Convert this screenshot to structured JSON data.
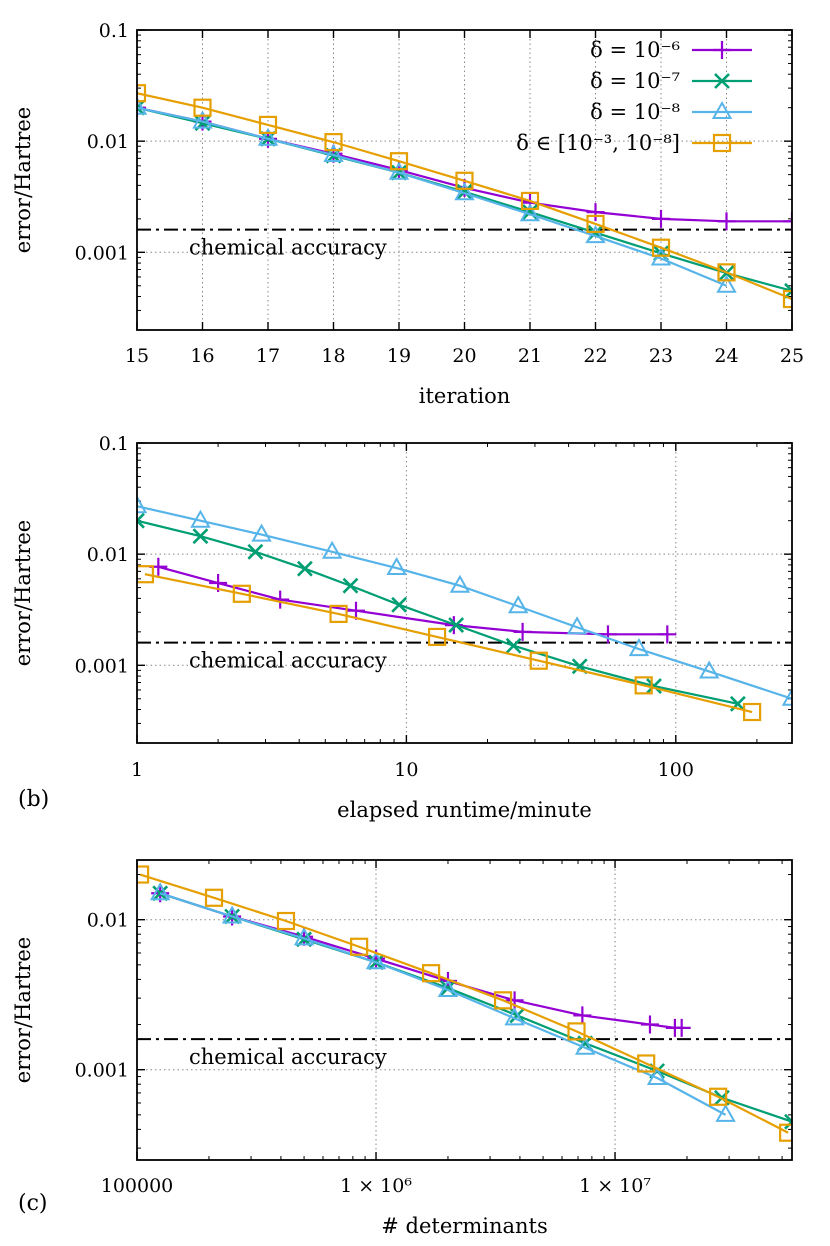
{
  "colors": {
    "purple": "#9400D3",
    "green": "#009E73",
    "blue": "#56B4E9",
    "orange": "#E69F00",
    "chem": "#000000"
  },
  "chart_data": [
    {
      "id": "a",
      "type": "line",
      "panel_label": "",
      "xlabel": "iteration",
      "ylabel": "error/Hartree",
      "xscale": "linear",
      "yscale": "log",
      "xlim": [
        15,
        25
      ],
      "ylim": [
        0.0002,
        0.1
      ],
      "grid": true,
      "xticks": [
        15,
        16,
        17,
        18,
        19,
        20,
        21,
        22,
        23,
        24,
        25
      ],
      "xtick_labels": [
        "15",
        "16",
        "17",
        "18",
        "19",
        "20",
        "21",
        "22",
        "23",
        "24",
        "25"
      ],
      "yticks": [
        0.001,
        0.01,
        0.1
      ],
      "ytick_labels": [
        "0.001",
        "0.01",
        "0.1"
      ],
      "legend_position": "top-right",
      "reference": {
        "label": "chemical accuracy",
        "y": 0.0016
      },
      "series": [
        {
          "name": "δ = 10⁻⁶",
          "color": "purple",
          "marker": "plus",
          "x": [
            15,
            16,
            17,
            18,
            19,
            20,
            21,
            22,
            23,
            24,
            25
          ],
          "y": [
            0.02,
            0.015,
            0.0105,
            0.0077,
            0.0055,
            0.0038,
            0.0028,
            0.0023,
            0.002,
            0.0019,
            0.0019
          ]
        },
        {
          "name": "δ = 10⁻⁷",
          "color": "green",
          "marker": "x",
          "x": [
            15,
            16,
            17,
            18,
            19,
            20,
            21,
            22,
            23,
            24,
            25
          ],
          "y": [
            0.02,
            0.0145,
            0.0105,
            0.0074,
            0.0052,
            0.0035,
            0.0023,
            0.0015,
            0.00098,
            0.00065,
            0.00045
          ]
        },
        {
          "name": "δ = 10⁻⁸",
          "color": "blue",
          "marker": "triangle",
          "x": [
            15,
            16,
            17,
            18,
            19,
            20,
            21,
            22,
            23,
            24
          ],
          "y": [
            0.02,
            0.015,
            0.0105,
            0.0075,
            0.0052,
            0.0034,
            0.0022,
            0.0014,
            0.00088,
            0.0005
          ]
        },
        {
          "name": "δ ∈ [10⁻³, 10⁻⁸]",
          "color": "orange",
          "marker": "square",
          "x": [
            15,
            16,
            17,
            18,
            19,
            20,
            21,
            22,
            23,
            24,
            25
          ],
          "y": [
            0.027,
            0.02,
            0.014,
            0.0098,
            0.0066,
            0.0044,
            0.0029,
            0.0018,
            0.0011,
            0.00066,
            0.00038
          ]
        }
      ]
    },
    {
      "id": "b",
      "type": "line",
      "panel_label": "(b)",
      "xlabel": "elapsed runtime/minute",
      "ylabel": "error/Hartree",
      "xscale": "log",
      "yscale": "log",
      "xlim": [
        1,
        270
      ],
      "ylim": [
        0.0002,
        0.1
      ],
      "grid": true,
      "xticks": [
        1,
        10,
        100
      ],
      "xtick_labels": [
        "1",
        "10",
        "100"
      ],
      "yticks": [
        0.001,
        0.01,
        0.1
      ],
      "ytick_labels": [
        "0.001",
        "0.01",
        "0.1"
      ],
      "reference": {
        "label": "chemical accuracy",
        "y": 0.0016
      },
      "series": [
        {
          "name": "δ = 10⁻⁶",
          "color": "purple",
          "marker": "plus",
          "x": [
            1.2,
            2.0,
            3.4,
            6.5,
            15.0,
            27.0,
            56.0,
            93.0
          ],
          "y": [
            0.0077,
            0.0055,
            0.0039,
            0.0031,
            0.0023,
            0.002,
            0.0019,
            0.0019
          ]
        },
        {
          "name": "δ = 10⁻⁷",
          "color": "green",
          "marker": "x",
          "x": [
            1.0,
            1.72,
            2.75,
            4.2,
            6.2,
            9.4,
            15.3,
            25.0,
            44.0,
            83.0,
            170.0
          ],
          "y": [
            0.02,
            0.0145,
            0.0105,
            0.0074,
            0.0052,
            0.0035,
            0.0023,
            0.0015,
            0.00098,
            0.00065,
            0.00045
          ]
        },
        {
          "name": "δ = 10⁻⁸",
          "color": "blue",
          "marker": "triangle",
          "x": [
            1.0,
            1.72,
            2.9,
            5.3,
            9.2,
            15.8,
            26.0,
            43.0,
            73.0,
            133.0,
            270.0
          ],
          "y": [
            0.027,
            0.02,
            0.015,
            0.0105,
            0.0075,
            0.0052,
            0.0034,
            0.0022,
            0.0014,
            0.00088,
            0.0005
          ]
        },
        {
          "name": "δ ∈ [10⁻³, 10⁻⁸]",
          "color": "orange",
          "marker": "square",
          "x": [
            1.07,
            2.45,
            5.6,
            13.0,
            31.0,
            76.0,
            192.0
          ],
          "y": [
            0.0066,
            0.0044,
            0.0029,
            0.0018,
            0.0011,
            0.00066,
            0.00038
          ]
        }
      ]
    },
    {
      "id": "c",
      "type": "line",
      "panel_label": "(c)",
      "xlabel": "# determinants",
      "ylabel": "error/Hartree",
      "xscale": "log",
      "yscale": "log",
      "xlim": [
        100000,
        55000000
      ],
      "ylim": [
        0.00025,
        0.025
      ],
      "grid": true,
      "xticks": [
        100000,
        1000000,
        10000000
      ],
      "xtick_labels": [
        "100000",
        "1 × 10⁶",
        "1 × 10⁷"
      ],
      "yticks": [
        0.001,
        0.01
      ],
      "ytick_labels": [
        "0.001",
        "0.01"
      ],
      "reference": {
        "label": "chemical accuracy",
        "y": 0.0016
      },
      "series": [
        {
          "name": "δ = 10⁻⁶",
          "color": "purple",
          "marker": "plus",
          "x": [
            125000,
            250000,
            500000,
            1000000,
            2000000,
            3800000,
            7300000,
            14000000,
            17800000,
            19000000
          ],
          "y": [
            0.015,
            0.0105,
            0.0077,
            0.0055,
            0.0039,
            0.0029,
            0.0023,
            0.002,
            0.0019,
            0.0019
          ]
        },
        {
          "name": "δ = 10⁻⁷",
          "color": "green",
          "marker": "x",
          "x": [
            125000,
            250000,
            500000,
            1000000,
            2000000,
            3900000,
            7500000,
            15000000,
            28000000,
            55000000
          ],
          "y": [
            0.015,
            0.0105,
            0.0074,
            0.0052,
            0.0035,
            0.0023,
            0.0015,
            0.00098,
            0.00065,
            0.00045
          ]
        },
        {
          "name": "δ = 10⁻⁸",
          "color": "blue",
          "marker": "triangle",
          "x": [
            125000,
            250000,
            500000,
            1000000,
            2000000,
            3800000,
            7500000,
            15000000,
            29000000
          ],
          "y": [
            0.015,
            0.0105,
            0.0075,
            0.0052,
            0.0034,
            0.0022,
            0.0014,
            0.00088,
            0.0005
          ]
        },
        {
          "name": "δ ∈ [10⁻³, 10⁻⁸]",
          "color": "orange",
          "marker": "square",
          "x": [
            103000,
            210000,
            420000,
            850000,
            1700000,
            3400000,
            6900000,
            13500000,
            27000000,
            53000000
          ],
          "y": [
            0.02,
            0.014,
            0.0098,
            0.0066,
            0.0044,
            0.0029,
            0.0018,
            0.0011,
            0.00066,
            0.00038
          ]
        }
      ]
    }
  ]
}
